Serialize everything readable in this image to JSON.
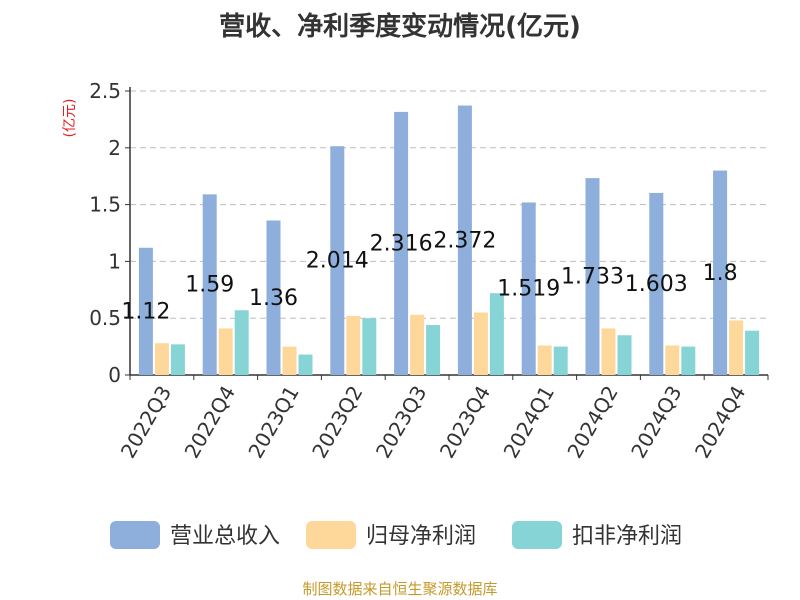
{
  "title": "营收、净利季度变动情况(亿元)",
  "footer": "制图数据来自恒生聚源数据库",
  "chart_data": {
    "type": "bar",
    "title": "营收、净利季度变动情况(亿元)",
    "ylabel": "(亿元)",
    "xlabel": "",
    "ylim": [
      0,
      2.5
    ],
    "yticks": [
      "0",
      "0.5",
      "1",
      "1.5",
      "2",
      "2.5"
    ],
    "grid": true,
    "legend_position": "bottom",
    "categories": [
      "2022Q3",
      "2022Q4",
      "2023Q1",
      "2023Q2",
      "2023Q3",
      "2023Q4",
      "2024Q1",
      "2024Q2",
      "2024Q3",
      "2024Q4"
    ],
    "series": [
      {
        "name": "营业总收入",
        "color": "#8eaedc",
        "values": [
          1.12,
          1.59,
          1.36,
          2.014,
          2.316,
          2.372,
          1.519,
          1.733,
          1.603,
          1.8
        ],
        "labels": [
          "1.12",
          "1.59",
          "1.36",
          "2.014",
          "2.316",
          "2.372",
          "1.519",
          "1.733",
          "1.603",
          "1.8"
        ]
      },
      {
        "name": "归母净利润",
        "color": "#fdd89a",
        "values": [
          0.28,
          0.41,
          0.25,
          0.52,
          0.53,
          0.55,
          0.26,
          0.41,
          0.26,
          0.48
        ]
      },
      {
        "name": "扣非净利润",
        "color": "#87d4d6",
        "values": [
          0.27,
          0.57,
          0.18,
          0.5,
          0.44,
          0.72,
          0.25,
          0.35,
          0.25,
          0.39
        ]
      }
    ]
  }
}
